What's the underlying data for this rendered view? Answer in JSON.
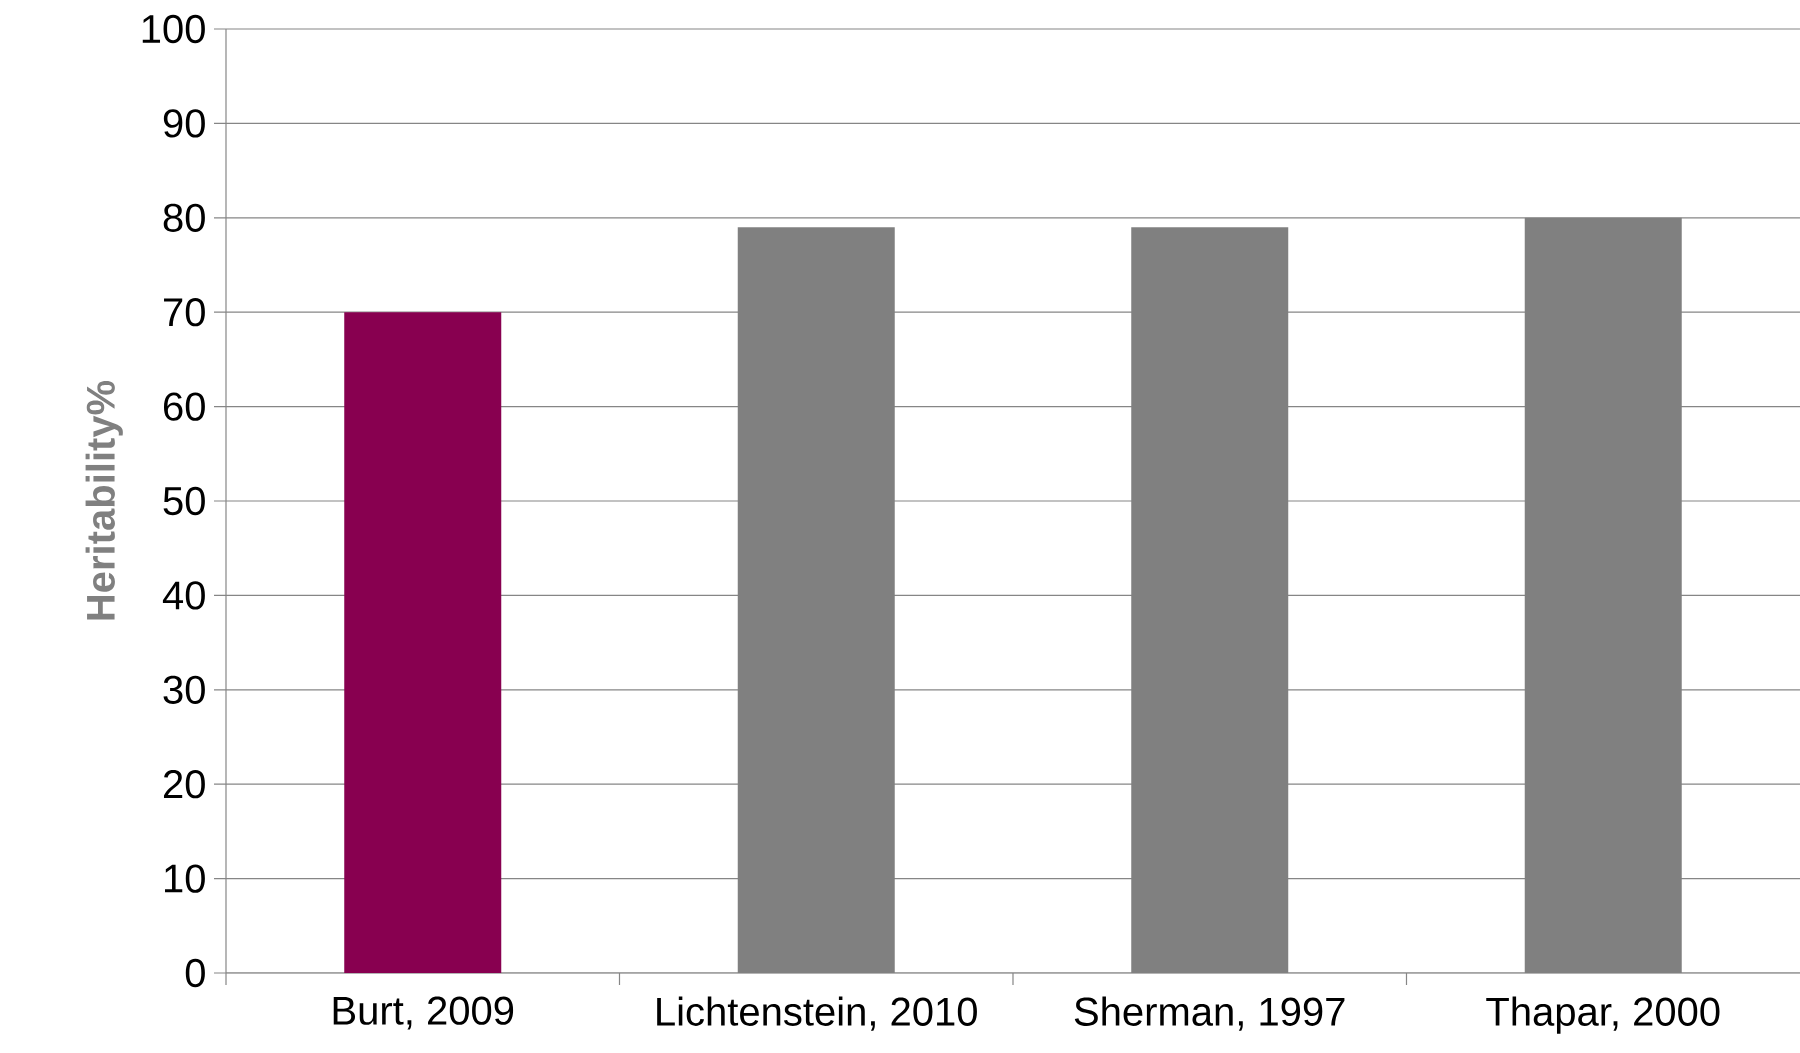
{
  "chart_data": {
    "type": "bar",
    "ylabel": "Heritability%",
    "categories": [
      "Burt, 2009",
      "Lichtenstein, 2010",
      "Sherman, 1997",
      "Thapar, 2000"
    ],
    "values": [
      70,
      79,
      79,
      80
    ],
    "colors": [
      "#880050",
      "#808080",
      "#808080",
      "#808080"
    ],
    "ylim": [
      0,
      100
    ],
    "yticks": [
      0,
      10,
      20,
      30,
      40,
      50,
      60,
      70,
      80,
      90,
      100
    ],
    "grid": "y"
  }
}
